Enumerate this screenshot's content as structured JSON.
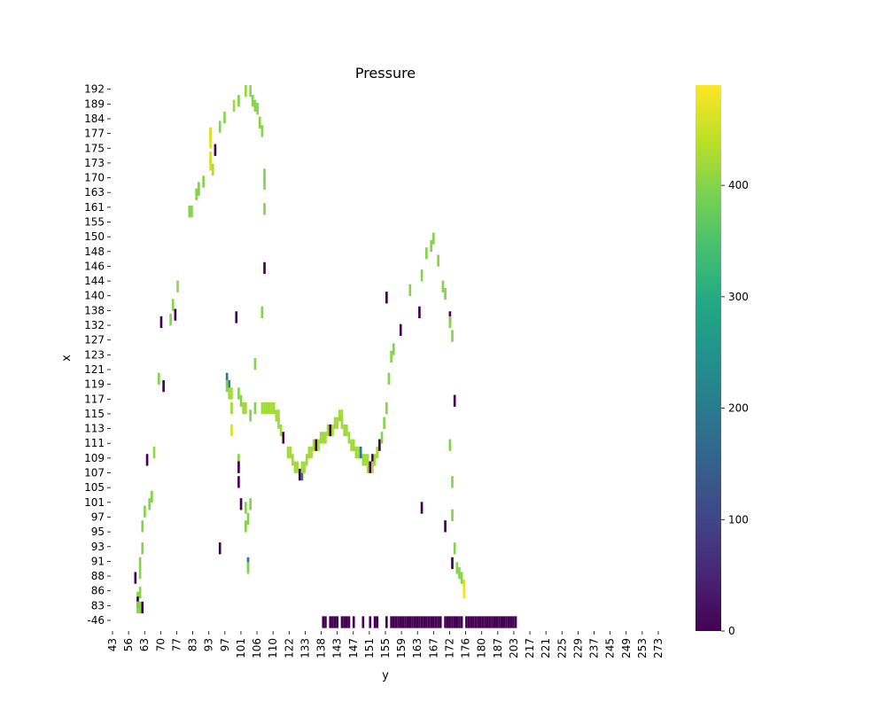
{
  "chart_data": {
    "type": "heatmap",
    "title": "Pressure",
    "xlabel": "y",
    "ylabel": "x",
    "x_ticks": [
      "43",
      "56",
      "63",
      "70",
      "77",
      "83",
      "93",
      "97",
      "101",
      "106",
      "110",
      "122",
      "133",
      "138",
      "143",
      "147",
      "151",
      "155",
      "159",
      "163",
      "167",
      "172",
      "176",
      "180",
      "187",
      "203",
      "217",
      "221",
      "225",
      "229",
      "237",
      "245",
      "249",
      "253",
      "273"
    ],
    "y_ticks": [
      "192",
      "189",
      "184",
      "177",
      "175",
      "173",
      "170",
      "163",
      "161",
      "155",
      "150",
      "148",
      "146",
      "144",
      "140",
      "138",
      "132",
      "127",
      "123",
      "121",
      "119",
      "117",
      "115",
      "113",
      "111",
      "109",
      "107",
      "105",
      "101",
      "97",
      "95",
      "93",
      "91",
      "88",
      "86",
      "83",
      "-46"
    ],
    "colorbar": {
      "colormap": "viridis",
      "min": 0,
      "max": 490,
      "ticks": [
        0,
        100,
        200,
        300,
        400
      ]
    },
    "cells": [
      [
        "100",
        "192",
        410
      ],
      [
        "102",
        "192",
        410
      ],
      [
        "97",
        "190",
        400
      ],
      [
        "103",
        "190",
        400
      ],
      [
        "95",
        "189",
        420
      ],
      [
        "104",
        "189",
        400
      ],
      [
        "105",
        "188",
        400
      ],
      [
        "91",
        "185",
        400
      ],
      [
        "106",
        "183",
        400
      ],
      [
        "89",
        "181",
        400
      ],
      [
        "107",
        "179",
        400
      ],
      [
        "85",
        "178",
        460
      ],
      [
        "85",
        "177",
        460
      ],
      [
        "85",
        "176",
        460
      ],
      [
        "87",
        "175",
        0
      ],
      [
        "85",
        "174",
        460
      ],
      [
        "85",
        "173",
        450
      ],
      [
        "86",
        "172",
        430
      ],
      [
        "108",
        "171",
        400
      ],
      [
        "82",
        "169",
        400
      ],
      [
        "108",
        "168",
        400
      ],
      [
        "80",
        "166",
        400
      ],
      [
        "80",
        "165",
        400
      ],
      [
        "79",
        "163",
        400
      ],
      [
        "108",
        "161",
        400
      ],
      [
        "76",
        "160",
        400
      ],
      [
        "77",
        "160",
        400
      ],
      [
        "108",
        "146",
        0
      ],
      [
        "71",
        "143",
        410
      ],
      [
        "107",
        "138",
        400
      ],
      [
        "69",
        "139",
        400
      ],
      [
        "70",
        "137",
        0
      ],
      [
        "96",
        "136",
        0
      ],
      [
        "68",
        "135",
        400
      ],
      [
        "64",
        "134",
        0
      ],
      [
        "104",
        "122",
        400
      ],
      [
        "92",
        "120",
        200
      ],
      [
        "92",
        "119",
        400
      ],
      [
        "93",
        "119",
        230
      ],
      [
        "93",
        "118",
        420
      ],
      [
        "94",
        "118",
        420
      ],
      [
        "63",
        "120",
        400
      ],
      [
        "65",
        "119",
        0
      ],
      [
        "97",
        "118",
        400
      ],
      [
        "98",
        "117",
        400
      ],
      [
        "94",
        "116",
        420
      ],
      [
        "99",
        "116",
        420
      ],
      [
        "100",
        "116",
        420
      ],
      [
        "104",
        "116",
        400
      ],
      [
        "107",
        "116",
        420
      ],
      [
        "108",
        "116",
        420
      ],
      [
        "109",
        "116",
        420
      ],
      [
        "110",
        "116",
        420
      ],
      [
        "111",
        "116",
        420
      ],
      [
        "112",
        "116",
        420
      ],
      [
        "113",
        "115",
        420
      ],
      [
        "114",
        "115",
        420
      ],
      [
        "102",
        "115",
        400
      ],
      [
        "114",
        "114",
        420
      ],
      [
        "115",
        "113",
        420
      ],
      [
        "116",
        "112",
        0
      ],
      [
        "94",
        "113",
        460
      ],
      [
        "118",
        "110",
        420
      ],
      [
        "119",
        "110",
        420
      ],
      [
        "120",
        "109",
        420
      ],
      [
        "121",
        "108",
        420
      ],
      [
        "122",
        "108",
        420
      ],
      [
        "123",
        "107",
        0
      ],
      [
        "124",
        "107",
        180
      ],
      [
        "124",
        "108",
        420
      ],
      [
        "125",
        "108",
        420
      ],
      [
        "126",
        "109",
        420
      ],
      [
        "127",
        "110",
        420
      ],
      [
        "128",
        "110",
        420
      ],
      [
        "129",
        "111",
        420
      ],
      [
        "130",
        "111",
        0
      ],
      [
        "131",
        "111",
        420
      ],
      [
        "132",
        "112",
        420
      ],
      [
        "133",
        "112",
        420
      ],
      [
        "134",
        "112",
        420
      ],
      [
        "135",
        "113",
        420
      ],
      [
        "136",
        "113",
        0
      ],
      [
        "137",
        "113",
        420
      ],
      [
        "138",
        "114",
        420
      ],
      [
        "139",
        "114",
        420
      ],
      [
        "140",
        "115",
        420
      ],
      [
        "141",
        "115",
        420
      ],
      [
        "141",
        "114",
        420
      ],
      [
        "142",
        "113",
        420
      ],
      [
        "143",
        "113",
        420
      ],
      [
        "144",
        "112",
        420
      ],
      [
        "145",
        "111",
        420
      ],
      [
        "146",
        "111",
        420
      ],
      [
        "147",
        "110",
        420
      ],
      [
        "148",
        "110",
        420
      ],
      [
        "149",
        "110",
        200
      ],
      [
        "150",
        "109",
        420
      ],
      [
        "151",
        "109",
        420
      ],
      [
        "152",
        "108",
        420
      ],
      [
        "152",
        "109",
        420
      ],
      [
        "153",
        "108",
        0
      ],
      [
        "154",
        "109",
        0
      ],
      [
        "154",
        "108",
        420
      ],
      [
        "155",
        "109",
        420
      ],
      [
        "156",
        "110",
        420
      ],
      [
        "157",
        "111",
        0
      ],
      [
        "158",
        "112",
        400
      ],
      [
        "159",
        "114",
        400
      ],
      [
        "160",
        "116",
        400
      ],
      [
        "61",
        "110",
        410
      ],
      [
        "58",
        "109",
        0
      ],
      [
        "60",
        "103",
        400
      ],
      [
        "59",
        "101",
        400
      ],
      [
        "57",
        "99",
        400
      ],
      [
        "56",
        "96",
        400
      ],
      [
        "56",
        "93",
        400
      ],
      [
        "55",
        "91",
        400
      ],
      [
        "55",
        "89",
        400
      ],
      [
        "55",
        "86",
        400
      ],
      [
        "53",
        "88",
        0
      ],
      [
        "54",
        "85",
        400
      ],
      [
        "54",
        "84",
        0
      ],
      [
        "54",
        "83",
        400
      ],
      [
        "55",
        "83",
        400
      ],
      [
        "56",
        "82",
        0
      ],
      [
        "97",
        "109",
        400
      ],
      [
        "97",
        "108",
        0
      ],
      [
        "97",
        "106",
        0
      ],
      [
        "98",
        "101",
        0
      ],
      [
        "100",
        "100",
        400
      ],
      [
        "102",
        "101",
        400
      ],
      [
        "100",
        "96",
        400
      ],
      [
        "101",
        "97",
        400
      ],
      [
        "89",
        "93",
        0
      ],
      [
        "101",
        "91",
        200
      ],
      [
        "101",
        "90",
        400
      ],
      [
        "161",
        "120",
        400
      ],
      [
        "162",
        "123",
        400
      ],
      [
        "163",
        "125",
        400
      ],
      [
        "166",
        "131",
        0
      ],
      [
        "170",
        "142",
        400
      ],
      [
        "175",
        "145",
        400
      ],
      [
        "174",
        "138",
        0
      ],
      [
        "177",
        "148",
        400
      ],
      [
        "179",
        "149",
        400
      ],
      [
        "180",
        "150",
        400
      ],
      [
        "182",
        "147",
        400
      ],
      [
        "184",
        "143",
        400
      ],
      [
        "185",
        "141",
        400
      ],
      [
        "187",
        "136",
        0
      ],
      [
        "187",
        "134",
        400
      ],
      [
        "188",
        "129",
        400
      ],
      [
        "189",
        "117",
        0
      ],
      [
        "187",
        "111",
        400
      ],
      [
        "188",
        "106",
        400
      ],
      [
        "188",
        "98",
        400
      ],
      [
        "189",
        "93",
        400
      ],
      [
        "188",
        "91",
        0
      ],
      [
        "190",
        "90",
        400
      ],
      [
        "191",
        "89",
        400
      ],
      [
        "192",
        "88",
        400
      ],
      [
        "193",
        "87",
        460
      ],
      [
        "193",
        "86",
        480
      ],
      [
        "175",
        "100",
        0
      ],
      [
        "185",
        "96",
        0
      ],
      [
        "160",
        "140",
        0
      ],
      [
        "133",
        "-46",
        0
      ],
      [
        "134",
        "-46",
        0
      ],
      [
        "136",
        "-46",
        0
      ],
      [
        "137",
        "-46",
        0
      ],
      [
        "138",
        "-46",
        0
      ],
      [
        "139",
        "-46",
        0
      ],
      [
        "141",
        "-46",
        0
      ],
      [
        "142",
        "-46",
        0
      ],
      [
        "143",
        "-46",
        0
      ],
      [
        "144",
        "-46",
        0
      ],
      [
        "146",
        "-46",
        0
      ],
      [
        "150",
        "-46",
        0
      ],
      [
        "153",
        "-46",
        0
      ],
      [
        "155",
        "-46",
        0
      ],
      [
        "156",
        "-46",
        0
      ],
      [
        "160",
        "-46",
        0
      ],
      [
        "162",
        "-46",
        0
      ],
      [
        "163",
        "-46",
        0
      ],
      [
        "164",
        "-46",
        0
      ],
      [
        "165",
        "-46",
        0
      ],
      [
        "166",
        "-46",
        0
      ],
      [
        "167",
        "-46",
        0
      ],
      [
        "168",
        "-46",
        0
      ],
      [
        "169",
        "-46",
        0
      ],
      [
        "170",
        "-46",
        0
      ],
      [
        "171",
        "-46",
        0
      ],
      [
        "172",
        "-46",
        0
      ],
      [
        "173",
        "-46",
        0
      ],
      [
        "174",
        "-46",
        0
      ],
      [
        "175",
        "-46",
        0
      ],
      [
        "176",
        "-46",
        0
      ],
      [
        "177",
        "-46",
        0
      ],
      [
        "178",
        "-46",
        0
      ],
      [
        "179",
        "-46",
        0
      ],
      [
        "180",
        "-46",
        0
      ],
      [
        "181",
        "-46",
        0
      ],
      [
        "182",
        "-46",
        0
      ],
      [
        "183",
        "-46",
        0
      ],
      [
        "185",
        "-46",
        0
      ],
      [
        "186",
        "-46",
        0
      ],
      [
        "187",
        "-46",
        0
      ],
      [
        "188",
        "-46",
        0
      ],
      [
        "189",
        "-46",
        0
      ],
      [
        "190",
        "-46",
        0
      ],
      [
        "191",
        "-46",
        0
      ],
      [
        "192",
        "-46",
        0
      ],
      [
        "194",
        "-46",
        0
      ],
      [
        "195",
        "-46",
        0
      ],
      [
        "196",
        "-46",
        0
      ],
      [
        "197",
        "-46",
        0
      ],
      [
        "198",
        "-46",
        0
      ],
      [
        "199",
        "-46",
        0
      ],
      [
        "200",
        "-46",
        0
      ],
      [
        "201",
        "-46",
        0
      ],
      [
        "202",
        "-46",
        0
      ],
      [
        "203",
        "-46",
        0
      ],
      [
        "204",
        "-46",
        0
      ],
      [
        "205",
        "-46",
        0
      ],
      [
        "206",
        "-46",
        0
      ],
      [
        "207",
        "-46",
        0
      ],
      [
        "208",
        "-46",
        0
      ],
      [
        "209",
        "-46",
        0
      ],
      [
        "210",
        "-46",
        0
      ],
      [
        "211",
        "-46",
        0
      ],
      [
        "212",
        "-46",
        0
      ],
      [
        "213",
        "-46",
        0
      ],
      [
        "214",
        "-46",
        0
      ],
      [
        "215",
        "-46",
        0
      ]
    ]
  }
}
